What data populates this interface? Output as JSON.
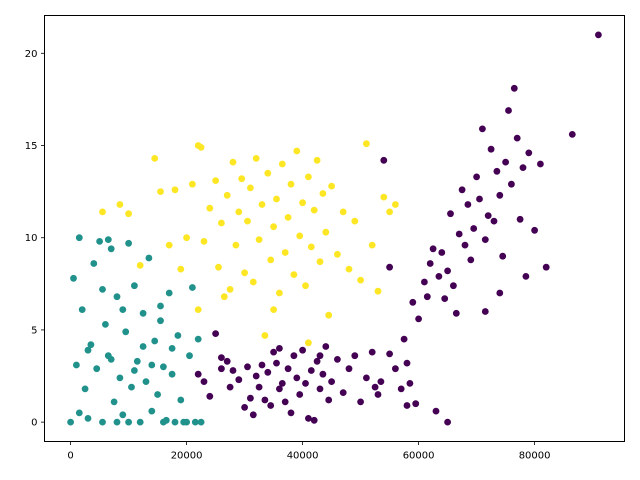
{
  "chart_data": {
    "type": "scatter",
    "title": "",
    "xlabel": "",
    "ylabel": "",
    "xlim": [
      -4500,
      95500
    ],
    "ylim": [
      -1.05,
      22.05
    ],
    "x_ticks": [
      0,
      20000,
      40000,
      60000,
      80000
    ],
    "x_tick_labels": [
      "0",
      "20000",
      "40000",
      "60000",
      "80000"
    ],
    "y_ticks": [
      0,
      5,
      10,
      15,
      20
    ],
    "y_tick_labels": [
      "0",
      "5",
      "10",
      "15",
      "20"
    ],
    "grid": false,
    "legend": "none",
    "series": [
      {
        "color": "#440154",
        "points": [
          [
            22000,
            2.6
          ],
          [
            23000,
            2.2
          ],
          [
            24000,
            1.4
          ],
          [
            25000,
            4.8
          ],
          [
            26000,
            3.5
          ],
          [
            27000,
            3.3
          ],
          [
            27500,
            1.9
          ],
          [
            28000,
            2.8
          ],
          [
            29000,
            2.3
          ],
          [
            30000,
            0.8
          ],
          [
            30500,
            3.0
          ],
          [
            31000,
            1.3
          ],
          [
            31500,
            0.4
          ],
          [
            32000,
            2.5
          ],
          [
            32500,
            1.9
          ],
          [
            33000,
            3.1
          ],
          [
            33500,
            1.2
          ],
          [
            34000,
            2.7
          ],
          [
            34500,
            0.9
          ],
          [
            35000,
            3.8
          ],
          [
            35500,
            3.2
          ],
          [
            36000,
            1.8
          ],
          [
            36500,
            2.1
          ],
          [
            37000,
            1.1
          ],
          [
            37500,
            2.9
          ],
          [
            38000,
            0.5
          ],
          [
            38500,
            3.6
          ],
          [
            39000,
            2.4
          ],
          [
            39500,
            1.5
          ],
          [
            40000,
            3.9
          ],
          [
            40500,
            2.1
          ],
          [
            41000,
            0.2
          ],
          [
            41500,
            2.8
          ],
          [
            42000,
            0.1
          ],
          [
            42500,
            3.3
          ],
          [
            43000,
            1.8
          ],
          [
            43500,
            2.6
          ],
          [
            44000,
            4.1
          ],
          [
            44500,
            1.2
          ],
          [
            45000,
            2.2
          ],
          [
            46000,
            3.4
          ],
          [
            47000,
            1.6
          ],
          [
            48000,
            2.9
          ],
          [
            49000,
            3.6
          ],
          [
            50000,
            1.1
          ],
          [
            51000,
            2.4
          ],
          [
            52000,
            3.8
          ],
          [
            53000,
            1.5
          ],
          [
            53500,
            2.2
          ],
          [
            54000,
            14.2
          ],
          [
            55000,
            3.7
          ],
          [
            56000,
            2.9
          ],
          [
            57000,
            1.8
          ],
          [
            57500,
            4.5
          ],
          [
            58000,
            3.2
          ],
          [
            58500,
            2.1
          ],
          [
            59000,
            6.5
          ],
          [
            59500,
            1.0
          ],
          [
            60000,
            5.6
          ],
          [
            61000,
            7.6
          ],
          [
            61500,
            6.8
          ],
          [
            62000,
            8.6
          ],
          [
            62500,
            9.4
          ],
          [
            63000,
            0.6
          ],
          [
            63500,
            7.9
          ],
          [
            64000,
            9.2
          ],
          [
            64500,
            6.7
          ],
          [
            65000,
            8.2
          ],
          [
            65500,
            11.3
          ],
          [
            66000,
            7.4
          ],
          [
            66500,
            5.9
          ],
          [
            67000,
            10.2
          ],
          [
            67500,
            12.6
          ],
          [
            68000,
            9.6
          ],
          [
            68500,
            11.8
          ],
          [
            69000,
            8.8
          ],
          [
            69500,
            10.5
          ],
          [
            70000,
            13.3
          ],
          [
            70500,
            12.1
          ],
          [
            71000,
            15.9
          ],
          [
            71500,
            9.9
          ],
          [
            72000,
            11.2
          ],
          [
            72500,
            14.8
          ],
          [
            73000,
            10.9
          ],
          [
            73500,
            13.6
          ],
          [
            74000,
            12.3
          ],
          [
            74500,
            9.0
          ],
          [
            75000,
            14.1
          ],
          [
            75500,
            16.9
          ],
          [
            76000,
            12.9
          ],
          [
            76500,
            18.1
          ],
          [
            77000,
            15.4
          ],
          [
            77500,
            11.0
          ],
          [
            78000,
            13.8
          ],
          [
            78500,
            7.9
          ],
          [
            79000,
            14.6
          ],
          [
            80000,
            10.4
          ],
          [
            81000,
            14.0
          ],
          [
            82000,
            8.4
          ],
          [
            86500,
            15.6
          ],
          [
            91000,
            21.0
          ],
          [
            65000,
            0.0
          ],
          [
            71500,
            6.0
          ],
          [
            74000,
            7.0
          ],
          [
            58000,
            0.9
          ],
          [
            55000,
            8.4
          ],
          [
            43000,
            3.6
          ],
          [
            36000,
            4.0
          ],
          [
            26000,
            2.9
          ],
          [
            52500,
            1.9
          ]
        ]
      },
      {
        "color": "#21918c",
        "points": [
          [
            0,
            0.0
          ],
          [
            500,
            7.8
          ],
          [
            1000,
            3.1
          ],
          [
            1500,
            0.5
          ],
          [
            2000,
            6.1
          ],
          [
            2500,
            1.8
          ],
          [
            3000,
            0.2
          ],
          [
            3500,
            4.2
          ],
          [
            4000,
            8.6
          ],
          [
            4500,
            2.9
          ],
          [
            5000,
            9.8
          ],
          [
            5500,
            0.0
          ],
          [
            6000,
            5.3
          ],
          [
            6500,
            3.6
          ],
          [
            7000,
            9.4
          ],
          [
            7500,
            1.1
          ],
          [
            8000,
            6.8
          ],
          [
            8500,
            2.4
          ],
          [
            9000,
            0.4
          ],
          [
            9500,
            4.9
          ],
          [
            10000,
            9.7
          ],
          [
            10500,
            1.9
          ],
          [
            11000,
            7.4
          ],
          [
            11500,
            3.3
          ],
          [
            12000,
            0.0
          ],
          [
            12500,
            5.9
          ],
          [
            13000,
            2.2
          ],
          [
            13500,
            8.9
          ],
          [
            14000,
            0.6
          ],
          [
            14500,
            4.4
          ],
          [
            15000,
            1.5
          ],
          [
            15500,
            6.3
          ],
          [
            16000,
            3.0
          ],
          [
            16500,
            0.1
          ],
          [
            17000,
            7.0
          ],
          [
            17500,
            2.6
          ],
          [
            18000,
            0.0
          ],
          [
            18500,
            4.7
          ],
          [
            19000,
            1.2
          ],
          [
            19500,
            0.0
          ],
          [
            20000,
            0.0
          ],
          [
            20500,
            3.6
          ],
          [
            21000,
            7.3
          ],
          [
            21500,
            0.0
          ],
          [
            22000,
            4.5
          ],
          [
            22500,
            0.0
          ],
          [
            1500,
            10.0
          ],
          [
            3000,
            3.9
          ],
          [
            5500,
            7.2
          ],
          [
            7000,
            3.4
          ],
          [
            9000,
            6.1
          ],
          [
            11000,
            2.8
          ],
          [
            12500,
            4.1
          ],
          [
            14000,
            3.1
          ],
          [
            15500,
            5.5
          ],
          [
            17500,
            4.0
          ],
          [
            8000,
            0.0
          ],
          [
            10000,
            0.0
          ],
          [
            16000,
            0.0
          ],
          [
            6500,
            9.9
          ]
        ]
      },
      {
        "color": "#fde725",
        "points": [
          [
            5500,
            11.4
          ],
          [
            8500,
            11.8
          ],
          [
            10000,
            11.3
          ],
          [
            12000,
            8.5
          ],
          [
            14500,
            14.3
          ],
          [
            15500,
            12.5
          ],
          [
            17000,
            9.6
          ],
          [
            18000,
            12.6
          ],
          [
            19000,
            8.3
          ],
          [
            20000,
            10.0
          ],
          [
            21000,
            12.9
          ],
          [
            22000,
            15.0
          ],
          [
            22500,
            14.9
          ],
          [
            23000,
            9.8
          ],
          [
            24000,
            11.6
          ],
          [
            25000,
            13.1
          ],
          [
            25500,
            8.4
          ],
          [
            26000,
            10.8
          ],
          [
            27000,
            12.3
          ],
          [
            27500,
            7.2
          ],
          [
            28000,
            14.1
          ],
          [
            28500,
            9.6
          ],
          [
            29000,
            11.4
          ],
          [
            29500,
            13.2
          ],
          [
            30000,
            8.1
          ],
          [
            30500,
            10.9
          ],
          [
            31000,
            12.7
          ],
          [
            31500,
            7.6
          ],
          [
            32000,
            14.3
          ],
          [
            32500,
            9.9
          ],
          [
            33000,
            11.8
          ],
          [
            33500,
            4.7
          ],
          [
            34000,
            13.5
          ],
          [
            34500,
            8.8
          ],
          [
            35000,
            10.6
          ],
          [
            35500,
            12.1
          ],
          [
            36000,
            7.0
          ],
          [
            36500,
            14.0
          ],
          [
            37000,
            9.2
          ],
          [
            37500,
            11.1
          ],
          [
            38000,
            12.9
          ],
          [
            38500,
            8.0
          ],
          [
            39000,
            14.7
          ],
          [
            39500,
            10.1
          ],
          [
            40000,
            11.9
          ],
          [
            40500,
            7.4
          ],
          [
            41000,
            13.3
          ],
          [
            41500,
            9.5
          ],
          [
            42000,
            11.5
          ],
          [
            42500,
            14.2
          ],
          [
            43000,
            8.7
          ],
          [
            43500,
            12.4
          ],
          [
            44000,
            10.3
          ],
          [
            44500,
            5.8
          ],
          [
            45000,
            12.8
          ],
          [
            46000,
            9.1
          ],
          [
            47000,
            11.4
          ],
          [
            48000,
            8.3
          ],
          [
            49000,
            10.9
          ],
          [
            50000,
            7.7
          ],
          [
            51000,
            15.1
          ],
          [
            52000,
            9.6
          ],
          [
            53000,
            7.1
          ],
          [
            54000,
            12.2
          ],
          [
            55000,
            11.4
          ],
          [
            56000,
            11.8
          ],
          [
            26500,
            6.8
          ],
          [
            35000,
            6.1
          ],
          [
            41000,
            4.3
          ],
          [
            22000,
            6.1
          ]
        ]
      }
    ]
  }
}
